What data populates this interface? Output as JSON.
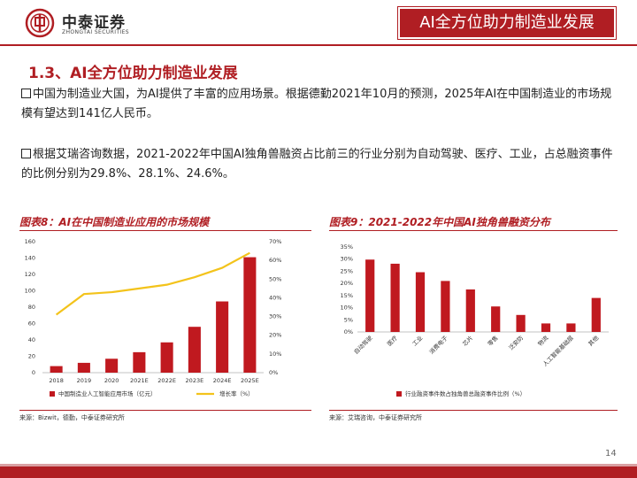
{
  "header": {
    "logo_cn": "中泰证券",
    "logo_en": "ZHONGTAI SECURITIES",
    "title": "AI全方位助力制造业发展"
  },
  "section_title": "1.3、AI全方位助力制造业发展",
  "paragraphs": [
    "中国为制造业大国，为AI提供了丰富的应用场景。根据德勤2021年10月的预测，2025年AI在中国制造业的市场规模有望达到141亿人民币。",
    "根据艾瑞咨询数据，2021-2022年中国AI独角兽融资占比前三的行业分别为自动驾驶、医疗、工业，占总融资事件的比例分别为29.8%、28.1%、24.6%。"
  ],
  "figures": {
    "fig8_title": "图表8：AI在中国制造业应用的市场规模",
    "fig8_source": "来源：Bizwit，德勤，中泰证券研究所",
    "fig9_title": "图表9：2021-2022年中国AI独角兽融资分布",
    "fig9_source": "来源：艾瑞咨询，中泰证券研究所"
  },
  "chart_data": [
    {
      "type": "bar",
      "categories": [
        "2018",
        "2019",
        "2020",
        "2021E",
        "2022E",
        "2023E",
        "2024E",
        "2025E"
      ],
      "series": [
        {
          "name": "中国制造业人工智能应用市场（亿元）",
          "type": "bar",
          "axis": "left",
          "color": "#c0191f",
          "values": [
            8,
            12,
            17,
            25,
            37,
            56,
            87,
            141
          ]
        },
        {
          "name": "增长率（%）",
          "type": "line",
          "axis": "right",
          "color": "#f3c31b",
          "values": [
            31,
            42,
            43,
            45,
            47,
            51,
            56,
            64
          ]
        }
      ],
      "ylim": [
        0,
        160
      ],
      "yticks": [
        0,
        20,
        40,
        60,
        80,
        100,
        120,
        140,
        160
      ],
      "y2lim": [
        0,
        70
      ],
      "y2ticks": [
        "0%",
        "10%",
        "20%",
        "30%",
        "40%",
        "50%",
        "60%",
        "70%"
      ],
      "legend": "bottom",
      "grid": false
    },
    {
      "type": "bar",
      "categories": [
        "自动驾驶",
        "医疗",
        "工业",
        "消费电子",
        "芯片",
        "零售",
        "泛安防",
        "物流",
        "人工智能基础层",
        "其他"
      ],
      "series": [
        {
          "name": "行业融资事件数占独角兽总融资事件比例（%）",
          "color": "#c0191f",
          "values": [
            29.8,
            28.1,
            24.6,
            21,
            17.5,
            10.5,
            7,
            3.5,
            3.5,
            14
          ]
        }
      ],
      "ylim": [
        0,
        35
      ],
      "yticks": [
        "0%",
        "5%",
        "10%",
        "15%",
        "20%",
        "25%",
        "30%",
        "35%"
      ],
      "legend": "bottom",
      "grid": false
    }
  ],
  "page_number": "14"
}
